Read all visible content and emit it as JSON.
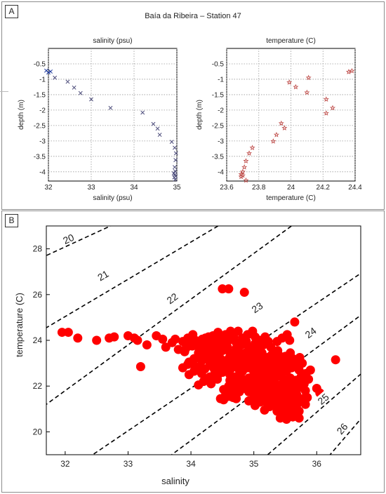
{
  "panel_a": {
    "label": "A",
    "title": "Baía da Ribeira – Station 47"
  },
  "panel_b": {
    "label": "B"
  },
  "colors": {
    "salinity_marker": "#4b4b7a",
    "salinity_marker_top": "#1f3a9e",
    "temperature_marker": "#c0504d",
    "scatter_marker": "#ff0000",
    "isopycnal": "#000000"
  },
  "chart_data": [
    {
      "type": "scatter",
      "title": "salinity (psu)",
      "xlabel": "salinity (psu)",
      "ylabel": "depth (m)",
      "xlim": [
        32,
        35
      ],
      "ylim": [
        -4.3,
        0
      ],
      "xticks": [
        "32",
        "33",
        "34",
        "35"
      ],
      "yticks": [
        "-0.5",
        "-1",
        "-1.5",
        "-2",
        "-2.5",
        "-3",
        "-3.5",
        "-4"
      ],
      "grid": true,
      "marker": "x",
      "points": [
        [
          31.95,
          -0.72
        ],
        [
          32.05,
          -0.75
        ],
        [
          32.0,
          -0.78
        ],
        [
          32.15,
          -0.95
        ],
        [
          32.45,
          -1.08
        ],
        [
          32.6,
          -1.27
        ],
        [
          32.75,
          -1.45
        ],
        [
          33.0,
          -1.65
        ],
        [
          33.45,
          -1.93
        ],
        [
          34.2,
          -2.08
        ],
        [
          34.45,
          -2.45
        ],
        [
          34.55,
          -2.6
        ],
        [
          34.6,
          -2.8
        ],
        [
          34.88,
          -3.03
        ],
        [
          34.95,
          -3.22
        ],
        [
          34.98,
          -3.4
        ],
        [
          34.97,
          -3.62
        ],
        [
          34.95,
          -3.85
        ],
        [
          34.96,
          -3.98
        ],
        [
          34.93,
          -4.05
        ],
        [
          34.95,
          -4.1
        ],
        [
          34.97,
          -4.14
        ],
        [
          34.94,
          -4.18
        ],
        [
          34.96,
          -4.25
        ]
      ]
    },
    {
      "type": "scatter",
      "title": "temperature (C)",
      "xlabel": "temperature (C)",
      "ylabel": "depth (m)",
      "xlim": [
        23.6,
        24.4
      ],
      "ylim": [
        -4.3,
        0
      ],
      "xticks": [
        "23.6",
        "23.8",
        "24",
        "24.2",
        "24.4"
      ],
      "yticks": [
        "-0.5",
        "-1",
        "-1.5",
        "-2",
        "-2.5",
        "-3",
        "-3.5",
        "-4"
      ],
      "grid": true,
      "marker": "star",
      "points": [
        [
          24.38,
          -0.73
        ],
        [
          24.36,
          -0.76
        ],
        [
          24.11,
          -0.95
        ],
        [
          23.99,
          -1.1
        ],
        [
          24.03,
          -1.25
        ],
        [
          24.1,
          -1.43
        ],
        [
          24.22,
          -1.65
        ],
        [
          24.26,
          -1.93
        ],
        [
          24.22,
          -2.1
        ],
        [
          23.94,
          -2.43
        ],
        [
          23.96,
          -2.58
        ],
        [
          23.91,
          -2.8
        ],
        [
          23.89,
          -3.01
        ],
        [
          23.76,
          -3.22
        ],
        [
          23.74,
          -3.4
        ],
        [
          23.72,
          -3.65
        ],
        [
          23.71,
          -3.85
        ],
        [
          23.7,
          -4.0
        ],
        [
          23.69,
          -4.08
        ],
        [
          23.7,
          -4.12
        ],
        [
          23.69,
          -4.16
        ],
        [
          23.72,
          -4.28
        ]
      ]
    },
    {
      "type": "scatter",
      "xlabel": "salinity",
      "ylabel": "temperature (C)",
      "xlim": [
        31.7,
        36.7
      ],
      "ylim": [
        19,
        29
      ],
      "xticks": [
        "32",
        "33",
        "34",
        "35",
        "36"
      ],
      "yticks": [
        "20",
        "22",
        "24",
        "26",
        "28"
      ],
      "grid": false,
      "marker": "circle",
      "isopycnals": [
        "20",
        "21",
        "22",
        "23",
        "24",
        "25",
        "26"
      ],
      "points": [
        [
          31.95,
          24.35
        ],
        [
          32.05,
          24.35
        ],
        [
          32.2,
          24.1
        ],
        [
          32.5,
          24.0
        ],
        [
          32.7,
          24.1
        ],
        [
          32.78,
          24.15
        ],
        [
          33.0,
          24.2
        ],
        [
          33.1,
          24.1
        ],
        [
          33.15,
          24.0
        ],
        [
          33.3,
          23.8
        ],
        [
          33.2,
          22.85
        ],
        [
          33.45,
          24.2
        ],
        [
          33.55,
          24.05
        ],
        [
          33.6,
          23.7
        ],
        [
          34.5,
          26.25
        ],
        [
          34.6,
          26.25
        ],
        [
          34.85,
          26.1
        ],
        [
          35.65,
          24.8
        ],
        [
          36.3,
          23.15
        ],
        [
          36.0,
          21.9
        ],
        [
          36.05,
          21.7
        ],
        [
          35.9,
          22.7
        ],
        [
          35.45,
          24.1
        ],
        [
          35.15,
          23.8
        ],
        [
          34.6,
          21.55
        ],
        [
          34.55,
          21.6
        ],
        [
          34.05,
          22.65
        ],
        [
          33.9,
          23.5
        ],
        [
          34.1,
          23.9
        ],
        [
          34.2,
          23.6
        ],
        [
          34.35,
          23.3
        ],
        [
          34.5,
          23.55
        ],
        [
          34.7,
          23.3
        ],
        [
          34.8,
          23.0
        ],
        [
          34.9,
          22.8
        ],
        [
          35.0,
          22.5
        ],
        [
          35.1,
          22.3
        ],
        [
          35.2,
          22.1
        ],
        [
          35.3,
          21.9
        ],
        [
          35.4,
          21.6
        ],
        [
          35.5,
          21.2
        ],
        [
          35.55,
          20.9
        ],
        [
          35.6,
          20.7
        ],
        [
          35.5,
          20.75
        ],
        [
          35.45,
          21.05
        ],
        [
          35.6,
          21.5
        ],
        [
          35.7,
          21.9
        ],
        [
          35.75,
          22.4
        ],
        [
          35.6,
          22.8
        ],
        [
          35.4,
          23.0
        ],
        [
          35.2,
          23.2
        ],
        [
          35.0,
          23.5
        ],
        [
          34.8,
          23.8
        ],
        [
          34.6,
          24.0
        ],
        [
          34.4,
          24.05
        ],
        [
          34.2,
          24.0
        ],
        [
          34.0,
          23.8
        ],
        [
          33.8,
          23.6
        ],
        [
          33.7,
          23.9
        ],
        [
          34.3,
          22.9
        ],
        [
          34.5,
          22.6
        ],
        [
          34.7,
          22.4
        ],
        [
          34.9,
          22.2
        ],
        [
          35.0,
          21.9
        ],
        [
          35.15,
          21.7
        ],
        [
          35.3,
          21.4
        ],
        [
          34.85,
          23.3
        ],
        [
          34.95,
          23.0
        ],
        [
          35.05,
          22.9
        ],
        [
          35.25,
          22.6
        ],
        [
          35.35,
          22.4
        ],
        [
          35.5,
          22.2
        ],
        [
          34.6,
          23.2
        ],
        [
          34.45,
          22.9
        ],
        [
          34.3,
          22.4
        ],
        [
          34.2,
          22.2
        ],
        [
          34.75,
          24.4
        ],
        [
          34.9,
          24.25
        ],
        [
          35.1,
          24.0
        ],
        [
          35.3,
          23.4
        ],
        [
          35.5,
          23.3
        ],
        [
          35.65,
          23.1
        ],
        [
          35.8,
          22.1
        ],
        [
          35.85,
          21.5
        ],
        [
          35.7,
          21.3
        ],
        [
          35.4,
          22.8
        ],
        [
          35.25,
          22.95
        ],
        [
          34.65,
          22.8
        ],
        [
          34.4,
          23.7
        ],
        [
          34.25,
          23.45
        ],
        [
          34.05,
          23.2
        ],
        [
          33.95,
          22.95
        ],
        [
          35.05,
          23.3
        ],
        [
          34.95,
          23.6
        ],
        [
          35.2,
          22.7
        ],
        [
          35.35,
          21.9
        ],
        [
          35.45,
          21.75
        ],
        [
          35.55,
          21.55
        ],
        [
          35.6,
          21.0
        ],
        [
          35.5,
          20.6
        ],
        [
          34.55,
          24.25
        ],
        [
          34.35,
          24.2
        ],
        [
          34.15,
          23.95
        ],
        [
          33.95,
          24.1
        ],
        [
          33.75,
          24.05
        ],
        [
          34.75,
          22.1
        ],
        [
          34.6,
          22.0
        ],
        [
          34.85,
          21.9
        ],
        [
          35.0,
          21.5
        ],
        [
          35.1,
          21.3
        ],
        [
          35.25,
          21.1
        ]
      ]
    }
  ]
}
